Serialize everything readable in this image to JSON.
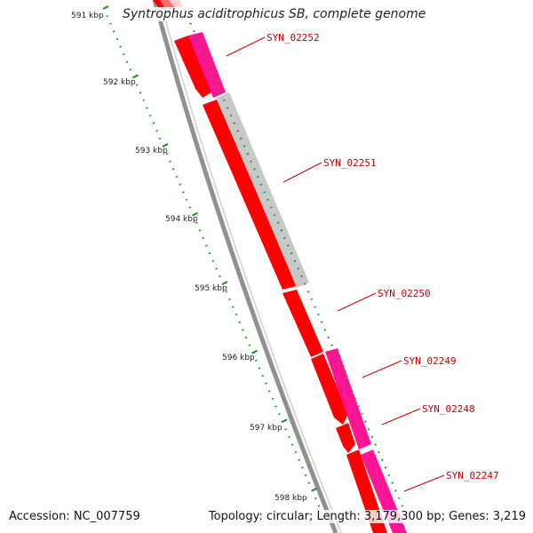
{
  "title": "Syntrophus aciditrophicus SB, complete genome",
  "footer": {
    "accession": "Accession: NC_007759",
    "topology": "Topology: circular; Length: 3,179,300 bp; Genes: 3,219"
  },
  "scale_labels": [
    "591 kbp",
    "592 kbp",
    "593 kbp",
    "594 kbp",
    "595 kbp",
    "596 kbp",
    "597 kbp",
    "598 kbp"
  ],
  "gene_labels": [
    "SYN_02252",
    "SYN_02251",
    "SYN_02250",
    "SYN_02249",
    "SYN_02248",
    "SYN_02247"
  ],
  "colors": {
    "backbone": "#8a8a8a",
    "red_gene": "#ff0000",
    "magenta_gene": "#ff1493",
    "gray_gene": "#c8c8c8",
    "tick": "#1a8a1a",
    "label": "#cc0000"
  }
}
